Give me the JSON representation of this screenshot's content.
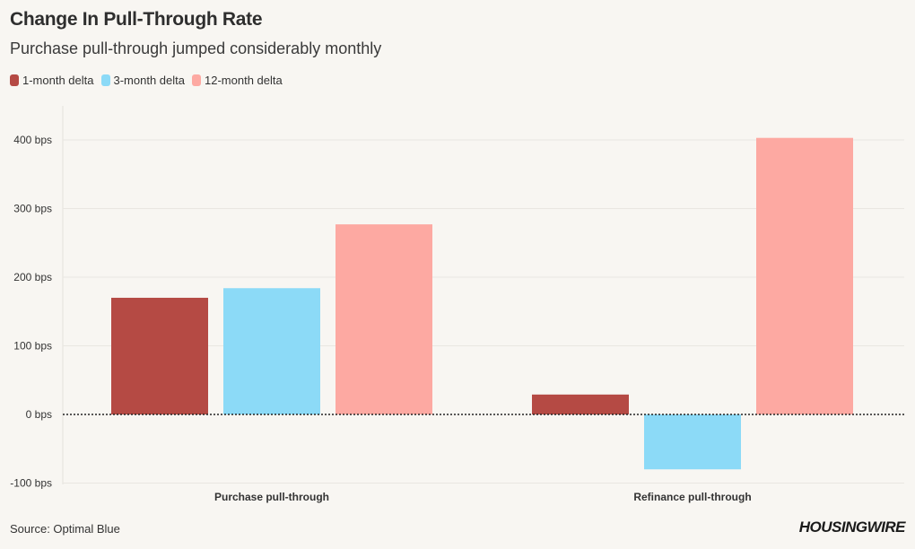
{
  "chart_data": {
    "type": "bar",
    "title": "Change In Pull-Through Rate",
    "subtitle": "Purchase pull-through jumped considerably monthly",
    "categories": [
      "Purchase pull-through",
      "Refinance pull-through"
    ],
    "series": [
      {
        "name": "1-month delta",
        "color": "#b54a44",
        "values": [
          170,
          29
        ]
      },
      {
        "name": "3-month delta",
        "color": "#8cdaf7",
        "values": [
          184,
          -80
        ]
      },
      {
        "name": "12-month delta",
        "color": "#fda9a2",
        "values": [
          277,
          403
        ]
      }
    ],
    "yticks": [
      -100,
      0,
      100,
      200,
      300,
      400
    ],
    "ytick_labels": [
      "-100 bps",
      "0 bps",
      "100 bps",
      "200 bps",
      "300 bps",
      "400 bps"
    ],
    "ylim": [
      -100,
      450
    ],
    "xlabel": "",
    "ylabel": "",
    "legend_position": "top-left"
  },
  "footer": {
    "source": "Source: Optimal Blue",
    "brand": "HOUSINGWIRE"
  }
}
